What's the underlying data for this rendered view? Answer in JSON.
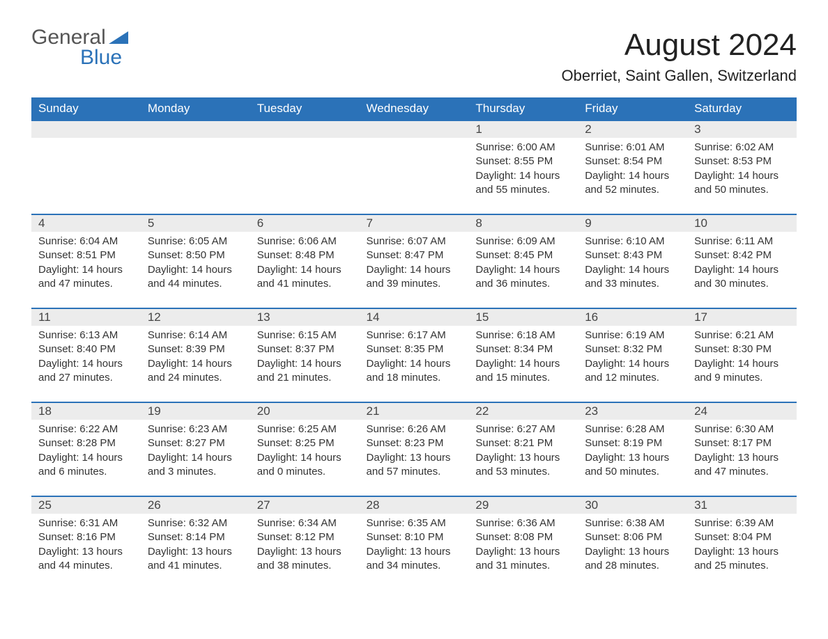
{
  "logo": {
    "part1": "General",
    "part2": "Blue",
    "triangle_color": "#2b72b8"
  },
  "title": "August 2024",
  "location": "Oberriet, Saint Gallen, Switzerland",
  "colors": {
    "header_bg": "#2b72b8",
    "header_text": "#ffffff",
    "daynum_bg": "#ececec",
    "body_text": "#333333",
    "border": "#2b72b8"
  },
  "typography": {
    "title_fontsize": 44,
    "location_fontsize": 22,
    "header_fontsize": 17,
    "body_fontsize": 15
  },
  "day_headers": [
    "Sunday",
    "Monday",
    "Tuesday",
    "Wednesday",
    "Thursday",
    "Friday",
    "Saturday"
  ],
  "weeks": [
    [
      null,
      null,
      null,
      null,
      {
        "day": "1",
        "sunrise": "6:00 AM",
        "sunset": "8:55 PM",
        "daylight": "14 hours and 55 minutes."
      },
      {
        "day": "2",
        "sunrise": "6:01 AM",
        "sunset": "8:54 PM",
        "daylight": "14 hours and 52 minutes."
      },
      {
        "day": "3",
        "sunrise": "6:02 AM",
        "sunset": "8:53 PM",
        "daylight": "14 hours and 50 minutes."
      }
    ],
    [
      {
        "day": "4",
        "sunrise": "6:04 AM",
        "sunset": "8:51 PM",
        "daylight": "14 hours and 47 minutes."
      },
      {
        "day": "5",
        "sunrise": "6:05 AM",
        "sunset": "8:50 PM",
        "daylight": "14 hours and 44 minutes."
      },
      {
        "day": "6",
        "sunrise": "6:06 AM",
        "sunset": "8:48 PM",
        "daylight": "14 hours and 41 minutes."
      },
      {
        "day": "7",
        "sunrise": "6:07 AM",
        "sunset": "8:47 PM",
        "daylight": "14 hours and 39 minutes."
      },
      {
        "day": "8",
        "sunrise": "6:09 AM",
        "sunset": "8:45 PM",
        "daylight": "14 hours and 36 minutes."
      },
      {
        "day": "9",
        "sunrise": "6:10 AM",
        "sunset": "8:43 PM",
        "daylight": "14 hours and 33 minutes."
      },
      {
        "day": "10",
        "sunrise": "6:11 AM",
        "sunset": "8:42 PM",
        "daylight": "14 hours and 30 minutes."
      }
    ],
    [
      {
        "day": "11",
        "sunrise": "6:13 AM",
        "sunset": "8:40 PM",
        "daylight": "14 hours and 27 minutes."
      },
      {
        "day": "12",
        "sunrise": "6:14 AM",
        "sunset": "8:39 PM",
        "daylight": "14 hours and 24 minutes."
      },
      {
        "day": "13",
        "sunrise": "6:15 AM",
        "sunset": "8:37 PM",
        "daylight": "14 hours and 21 minutes."
      },
      {
        "day": "14",
        "sunrise": "6:17 AM",
        "sunset": "8:35 PM",
        "daylight": "14 hours and 18 minutes."
      },
      {
        "day": "15",
        "sunrise": "6:18 AM",
        "sunset": "8:34 PM",
        "daylight": "14 hours and 15 minutes."
      },
      {
        "day": "16",
        "sunrise": "6:19 AM",
        "sunset": "8:32 PM",
        "daylight": "14 hours and 12 minutes."
      },
      {
        "day": "17",
        "sunrise": "6:21 AM",
        "sunset": "8:30 PM",
        "daylight": "14 hours and 9 minutes."
      }
    ],
    [
      {
        "day": "18",
        "sunrise": "6:22 AM",
        "sunset": "8:28 PM",
        "daylight": "14 hours and 6 minutes."
      },
      {
        "day": "19",
        "sunrise": "6:23 AM",
        "sunset": "8:27 PM",
        "daylight": "14 hours and 3 minutes."
      },
      {
        "day": "20",
        "sunrise": "6:25 AM",
        "sunset": "8:25 PM",
        "daylight": "14 hours and 0 minutes."
      },
      {
        "day": "21",
        "sunrise": "6:26 AM",
        "sunset": "8:23 PM",
        "daylight": "13 hours and 57 minutes."
      },
      {
        "day": "22",
        "sunrise": "6:27 AM",
        "sunset": "8:21 PM",
        "daylight": "13 hours and 53 minutes."
      },
      {
        "day": "23",
        "sunrise": "6:28 AM",
        "sunset": "8:19 PM",
        "daylight": "13 hours and 50 minutes."
      },
      {
        "day": "24",
        "sunrise": "6:30 AM",
        "sunset": "8:17 PM",
        "daylight": "13 hours and 47 minutes."
      }
    ],
    [
      {
        "day": "25",
        "sunrise": "6:31 AM",
        "sunset": "8:16 PM",
        "daylight": "13 hours and 44 minutes."
      },
      {
        "day": "26",
        "sunrise": "6:32 AM",
        "sunset": "8:14 PM",
        "daylight": "13 hours and 41 minutes."
      },
      {
        "day": "27",
        "sunrise": "6:34 AM",
        "sunset": "8:12 PM",
        "daylight": "13 hours and 38 minutes."
      },
      {
        "day": "28",
        "sunrise": "6:35 AM",
        "sunset": "8:10 PM",
        "daylight": "13 hours and 34 minutes."
      },
      {
        "day": "29",
        "sunrise": "6:36 AM",
        "sunset": "8:08 PM",
        "daylight": "13 hours and 31 minutes."
      },
      {
        "day": "30",
        "sunrise": "6:38 AM",
        "sunset": "8:06 PM",
        "daylight": "13 hours and 28 minutes."
      },
      {
        "day": "31",
        "sunrise": "6:39 AM",
        "sunset": "8:04 PM",
        "daylight": "13 hours and 25 minutes."
      }
    ]
  ],
  "labels": {
    "sunrise": "Sunrise: ",
    "sunset": "Sunset: ",
    "daylight": "Daylight: "
  }
}
